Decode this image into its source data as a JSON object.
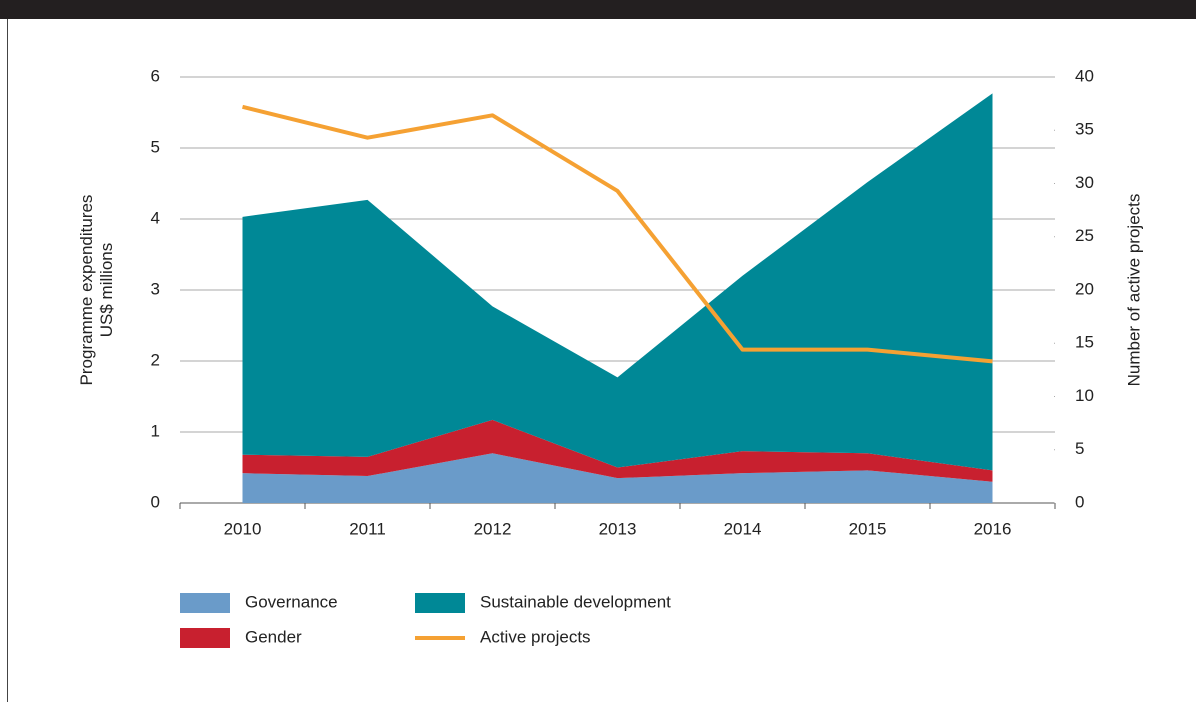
{
  "chart_data": {
    "type": "stacked-area-line",
    "categories": [
      "2010",
      "2011",
      "2012",
      "2013",
      "2014",
      "2015",
      "2016"
    ],
    "y_label": [
      "Programme expenditures",
      "US$ millions"
    ],
    "y2_label": "Number of active projects",
    "ylim": [
      0,
      6
    ],
    "yticks": [
      0,
      1,
      2,
      3,
      4,
      5,
      6
    ],
    "y2lim": [
      0,
      40
    ],
    "y2ticks": [
      0,
      5,
      10,
      15,
      20,
      25,
      30,
      35,
      40
    ],
    "grid": true,
    "series": [
      {
        "name": "Governance",
        "color": "#6a9bc9",
        "kind": "area",
        "values": [
          0.42,
          0.38,
          0.7,
          0.35,
          0.42,
          0.46,
          0.3
        ]
      },
      {
        "name": "Gender",
        "color": "#c8202f",
        "kind": "area",
        "values": [
          0.26,
          0.27,
          0.47,
          0.15,
          0.31,
          0.24,
          0.16
        ]
      },
      {
        "name": "Sustainable development",
        "color": "#008896",
        "kind": "area",
        "values": [
          3.35,
          3.62,
          1.6,
          1.27,
          2.47,
          3.82,
          5.31
        ]
      },
      {
        "name": "Active projects",
        "color": "#f5a133",
        "kind": "line",
        "axis": "y2",
        "values": [
          37.2,
          34.3,
          36.4,
          29.3,
          14.4,
          14.4,
          13.3
        ]
      }
    ]
  }
}
